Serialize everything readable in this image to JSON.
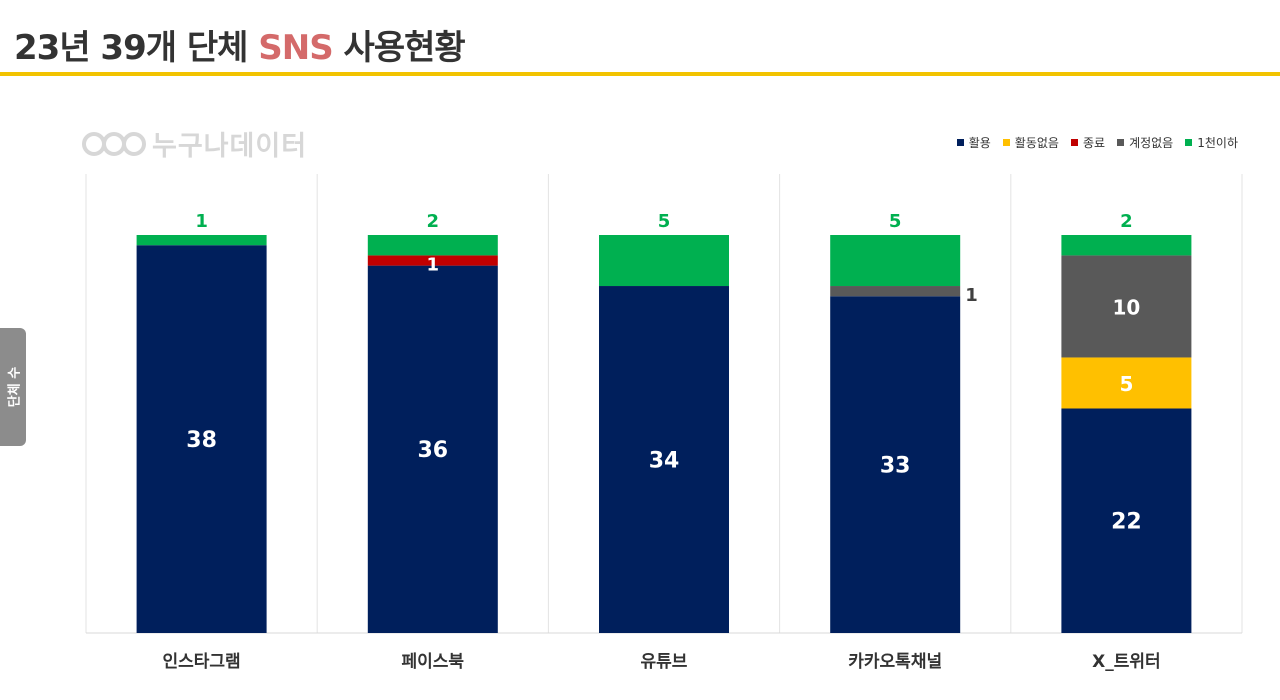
{
  "header": {
    "title_prefix": "23년 39개 단체 ",
    "title_accent": "SNS",
    "title_suffix": " 사용현황"
  },
  "brand": {
    "name": "누구나데이터"
  },
  "colors": {
    "active": "#001f5c",
    "inactive": "#ffc000",
    "closed": "#c00000",
    "no_account": "#595959",
    "under_1000": "#00b050",
    "title_rule": "#f2c300",
    "title_accent": "#d46a6a"
  },
  "chart_data": {
    "type": "bar",
    "stacked": true,
    "ylabel": "단체 수",
    "categories": [
      "인스타그램",
      "페이스북",
      "유튜브",
      "카카오톡채널",
      "X_트위터"
    ],
    "series": [
      {
        "name": "활용",
        "values": [
          38,
          36,
          34,
          33,
          22
        ],
        "color": "#001f5c"
      },
      {
        "name": "활동없음",
        "values": [
          0,
          0,
          0,
          0,
          5
        ],
        "color": "#ffc000"
      },
      {
        "name": "종료",
        "values": [
          0,
          1,
          0,
          0,
          0
        ],
        "color": "#c00000"
      },
      {
        "name": "계정없음",
        "values": [
          0,
          0,
          0,
          1,
          10
        ],
        "color": "#595959"
      },
      {
        "name": "1천이하",
        "values": [
          1,
          2,
          5,
          5,
          2
        ],
        "color": "#00b050"
      }
    ],
    "ylim": [
      0,
      39
    ],
    "legend_position": "top-right",
    "grid": "vertical separators"
  }
}
